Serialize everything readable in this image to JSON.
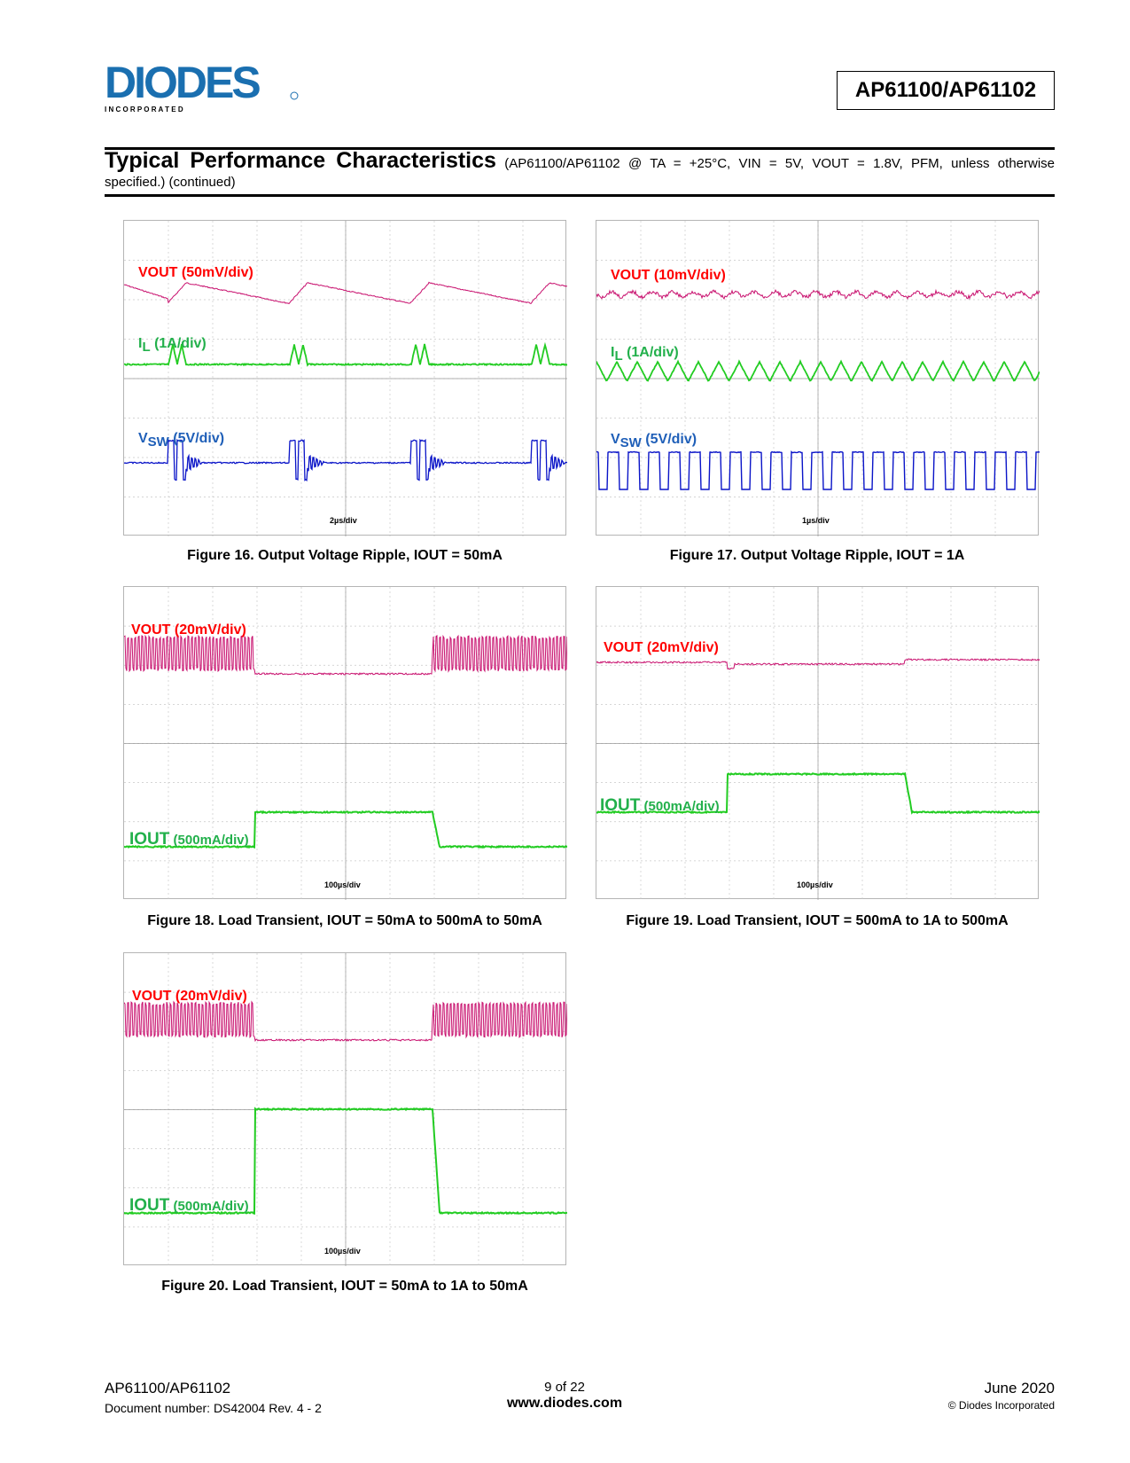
{
  "header": {
    "logo_text": "DIODES",
    "logo_sub": "I N C O R P O R A T E D",
    "part_number": "AP61100/AP61102"
  },
  "section": {
    "title": "Typical Performance Characteristics",
    "subtitle_line1": "(AP61100/AP61102 @ TA = +25°C, VIN = 5V, VOUT = 1.8V, PFM, unless otherwise",
    "subtitle_line2": "specified.) (continued)"
  },
  "figures": [
    {
      "caption": "Figure 16. Output Voltage Ripple, IOUT = 50mA",
      "timebase": "2µs/div",
      "traces": [
        {
          "label": "VOUT (50mV/div)",
          "color": "#c8106e"
        },
        {
          "label_main": "I",
          "label_sub": "L",
          "label_rest": " (1A/div)",
          "color": "#22cc22"
        },
        {
          "label_main": "V",
          "label_sub": "SW",
          "label_rest": " (5V/div)",
          "color": "#0a14c8"
        }
      ]
    },
    {
      "caption": "Figure 17. Output Voltage Ripple, IOUT = 1A",
      "timebase": "1µs/div",
      "traces": [
        {
          "label": "VOUT (10mV/div)",
          "color": "#c8106e"
        },
        {
          "label_main": "I",
          "label_sub": "L",
          "label_rest": " (1A/div)",
          "color": "#22cc22"
        },
        {
          "label_main": "V",
          "label_sub": "SW",
          "label_rest": " (5V/div)",
          "color": "#0a14c8"
        }
      ]
    },
    {
      "caption": "Figure 18.  Load Transient, IOUT = 50mA to 500mA to 50mA",
      "timebase": "100µs/div",
      "traces": [
        {
          "label": "VOUT (20mV/div)",
          "color": "#c8106e"
        },
        {
          "label_main": "IOUT",
          "label_rest": " (500mA/div)",
          "color": "#22cc22"
        }
      ]
    },
    {
      "caption": "Figure 19. Load Transient, IOUT = 500mA to 1A to 500mA",
      "timebase": "100µs/div",
      "traces": [
        {
          "label": "VOUT (20mV/div)",
          "color": "#c8106e"
        },
        {
          "label_main": "IOUT",
          "label_rest": " (500mA/div)",
          "color": "#22cc22"
        }
      ]
    },
    {
      "caption": "Figure 20. Load Transient, IOUT = 50mA to 1A to 50mA",
      "timebase": "100µs/div",
      "traces": [
        {
          "label": "VOUT (20mV/div)",
          "color": "#c8106e"
        },
        {
          "label_main": "IOUT",
          "label_rest": " (500mA/div)",
          "color": "#22cc22"
        }
      ]
    }
  ],
  "footer": {
    "part": "AP61100/AP61102",
    "docnum": "Document number: DS42004 Rev. 4 - 2",
    "page": "9 of 22",
    "website": "www.diodes.com",
    "date": "June 2020",
    "copyright": "© Diodes Incorporated"
  }
}
